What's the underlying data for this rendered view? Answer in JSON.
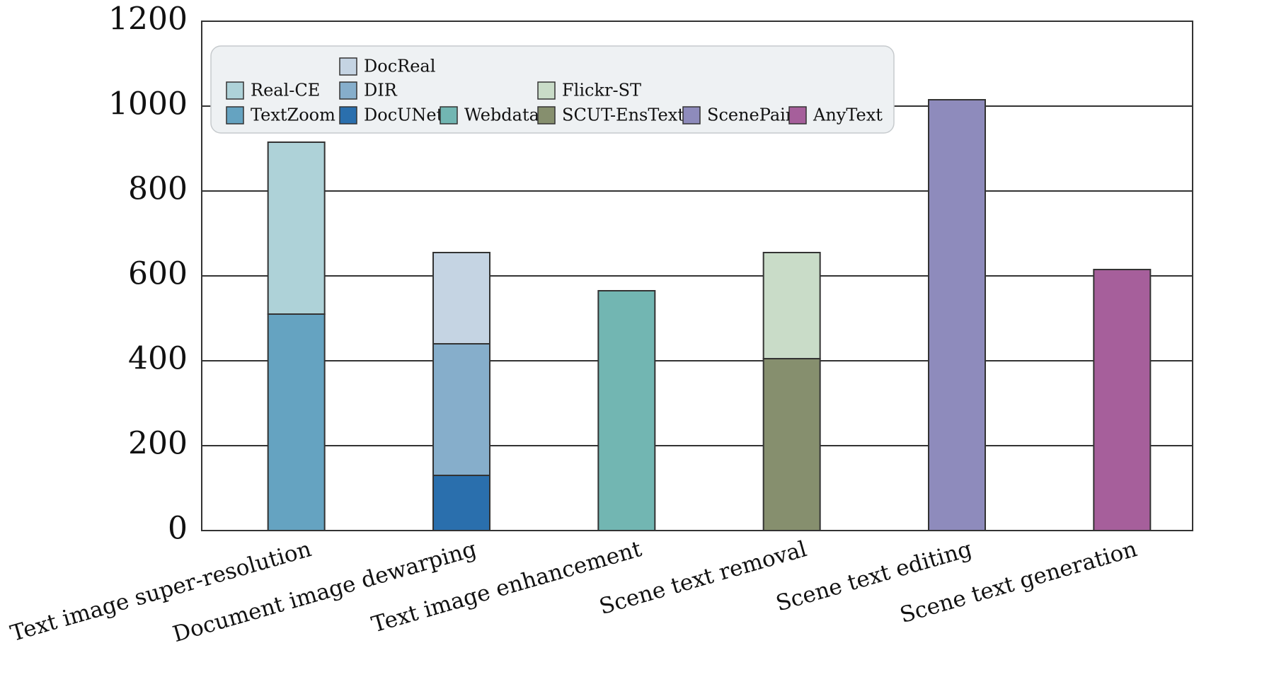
{
  "chart_data": {
    "type": "bar",
    "stacked": true,
    "title": "",
    "xlabel": "",
    "ylabel": "",
    "ylim": [
      0,
      1200
    ],
    "yticks": [
      0,
      200,
      400,
      600,
      800,
      1000,
      1200
    ],
    "grid": "horizontal",
    "legend_position": "top",
    "categories": [
      "Text image super-resolution",
      "Document image dewarping",
      "Text image enhancement",
      "Scene text removal",
      "Scene text editing",
      "Scene text generation"
    ],
    "series": [
      {
        "name": "TextZoom",
        "category": 0,
        "value": 510,
        "color": "#65a3c1"
      },
      {
        "name": "Real-CE",
        "category": 0,
        "value": 405,
        "color": "#aed2d8"
      },
      {
        "name": "DocUNet",
        "category": 1,
        "value": 130,
        "color": "#2a6fad"
      },
      {
        "name": "DIR",
        "category": 1,
        "value": 310,
        "color": "#86aecb"
      },
      {
        "name": "DocReal",
        "category": 1,
        "value": 215,
        "color": "#c5d4e3"
      },
      {
        "name": "Webdata",
        "category": 2,
        "value": 565,
        "color": "#72b6b2"
      },
      {
        "name": "SCUT-EnsText",
        "category": 3,
        "value": 405,
        "color": "#868f6e"
      },
      {
        "name": "Flickr-ST",
        "category": 3,
        "value": 250,
        "color": "#c9dcc8"
      },
      {
        "name": "ScenePair",
        "category": 4,
        "value": 1015,
        "color": "#8e8bbc"
      },
      {
        "name": "AnyText",
        "category": 5,
        "value": 615,
        "color": "#a65f9b"
      }
    ],
    "legend": [
      {
        "name": "DocReal",
        "color": "#c5d4e3"
      },
      {
        "name": "Real-CE",
        "color": "#aed2d8"
      },
      {
        "name": "DIR",
        "color": "#86aecb"
      },
      {
        "name": "Flickr-ST",
        "color": "#c9dcc8"
      },
      {
        "name": "TextZoom",
        "color": "#65a3c1"
      },
      {
        "name": "DocUNet",
        "color": "#2a6fad"
      },
      {
        "name": "Webdata",
        "color": "#72b6b2"
      },
      {
        "name": "SCUT-EnsText",
        "color": "#868f6e"
      },
      {
        "name": "ScenePair",
        "color": "#8e8bbc"
      },
      {
        "name": "AnyText",
        "color": "#a65f9b"
      }
    ]
  }
}
